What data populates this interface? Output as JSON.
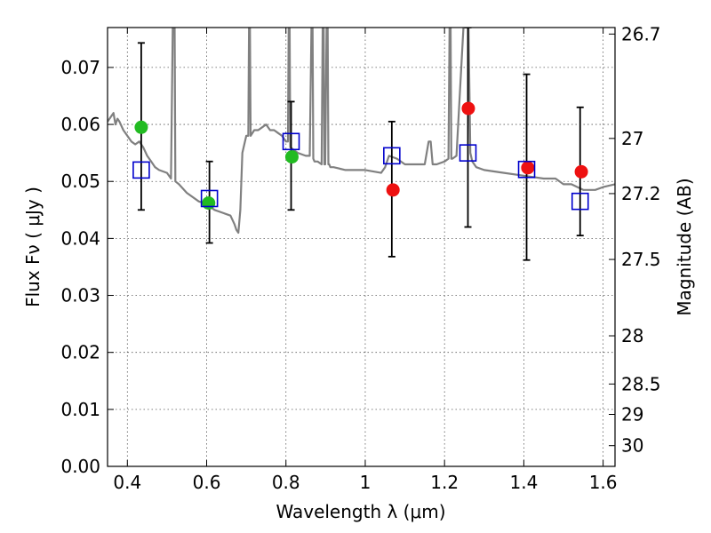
{
  "chart_data": {
    "type": "scatter",
    "title": "",
    "xlabel": "Wavelength  λ (μm)",
    "ylabel": "Flux  Fν  ( μJy )",
    "y2label": "Magnitude (AB)",
    "xlim": [
      0.35,
      1.63
    ],
    "ylim": [
      0.0,
      0.077
    ],
    "grid": true,
    "x_ticks": [
      0.4,
      0.6,
      0.8,
      1.0,
      1.2,
      1.4,
      1.6
    ],
    "x_tick_labels": [
      "0.4",
      "0.6",
      "0.8",
      "1",
      "1.2",
      "1.4",
      "1.6"
    ],
    "y_ticks": [
      0.0,
      0.01,
      0.02,
      0.03,
      0.04,
      0.05,
      0.06,
      0.07
    ],
    "y_tick_labels": [
      "0.00",
      "0.01",
      "0.02",
      "0.03",
      "0.04",
      "0.05",
      "0.06",
      "0.07"
    ],
    "y2_ticks": [
      26.7,
      27,
      27.2,
      27.5,
      28,
      28.5,
      29,
      30
    ],
    "y2_tick_labels": [
      "26.7",
      "27",
      "27.2",
      "27.5",
      "28",
      "28.5",
      "29",
      "30"
    ],
    "model_spectrum": {
      "color": "#808080",
      "x": [
        0.35,
        0.36,
        0.365,
        0.37,
        0.375,
        0.38,
        0.39,
        0.4,
        0.41,
        0.42,
        0.43,
        0.44,
        0.45,
        0.46,
        0.47,
        0.48,
        0.5,
        0.51,
        0.515,
        0.517,
        0.519,
        0.521,
        0.53,
        0.55,
        0.58,
        0.6,
        0.62,
        0.64,
        0.66,
        0.67,
        0.675,
        0.68,
        0.685,
        0.69,
        0.7,
        0.705,
        0.707,
        0.709,
        0.711,
        0.72,
        0.73,
        0.74,
        0.75,
        0.76,
        0.77,
        0.78,
        0.79,
        0.8,
        0.805,
        0.807,
        0.809,
        0.811,
        0.82,
        0.83,
        0.85,
        0.86,
        0.865,
        0.867,
        0.869,
        0.872,
        0.88,
        0.89,
        0.893,
        0.895,
        0.897,
        0.899,
        0.903,
        0.905,
        0.907,
        0.909,
        0.912,
        0.92,
        0.95,
        1.0,
        1.04,
        1.05,
        1.06,
        1.08,
        1.1,
        1.15,
        1.16,
        1.165,
        1.17,
        1.18,
        1.2,
        1.21,
        1.213,
        1.215,
        1.217,
        1.22,
        1.23,
        1.25,
        1.26,
        1.265,
        1.27,
        1.28,
        1.3,
        1.35,
        1.4,
        1.45,
        1.48,
        1.5,
        1.52,
        1.55,
        1.58,
        1.6,
        1.63
      ],
      "y": [
        0.0605,
        0.0615,
        0.062,
        0.06,
        0.061,
        0.0605,
        0.059,
        0.058,
        0.057,
        0.0565,
        0.057,
        0.056,
        0.0545,
        0.0535,
        0.0525,
        0.052,
        0.0515,
        0.0505,
        0.08,
        0.08,
        0.08,
        0.05,
        0.0495,
        0.048,
        0.0465,
        0.046,
        0.045,
        0.0445,
        0.044,
        0.0425,
        0.0415,
        0.041,
        0.045,
        0.055,
        0.058,
        0.058,
        0.08,
        0.08,
        0.058,
        0.059,
        0.059,
        0.0595,
        0.06,
        0.059,
        0.059,
        0.0585,
        0.058,
        0.057,
        0.057,
        0.08,
        0.08,
        0.056,
        0.0555,
        0.055,
        0.0545,
        0.0545,
        0.08,
        0.08,
        0.054,
        0.0535,
        0.0535,
        0.053,
        0.08,
        0.08,
        0.053,
        0.053,
        0.08,
        0.08,
        0.053,
        0.053,
        0.0525,
        0.0525,
        0.052,
        0.052,
        0.0515,
        0.0525,
        0.0545,
        0.054,
        0.053,
        0.053,
        0.057,
        0.057,
        0.053,
        0.053,
        0.0535,
        0.054,
        0.08,
        0.08,
        0.054,
        0.054,
        0.0545,
        0.08,
        0.08,
        0.055,
        0.0535,
        0.0525,
        0.052,
        0.0515,
        0.051,
        0.0505,
        0.0505,
        0.0495,
        0.0495,
        0.0485,
        0.0485,
        0.049,
        0.0495
      ]
    },
    "series": [
      {
        "marker": "circle",
        "color": "#22bb22",
        "x": [
          0.435,
          0.605,
          0.815
        ],
        "y": [
          0.0595,
          0.0462,
          0.0543
        ]
      },
      {
        "marker": "circle",
        "color": "#ee1111",
        "x": [
          1.07,
          1.26,
          1.41,
          1.545
        ],
        "y": [
          0.0485,
          0.0628,
          0.0524,
          0.0517
        ]
      },
      {
        "marker": "open-square",
        "color": "#0000cc",
        "x": [
          0.435,
          0.607,
          0.813,
          1.067,
          1.259,
          1.407,
          1.542
        ],
        "y": [
          0.052,
          0.047,
          0.057,
          0.0545,
          0.055,
          0.0521,
          0.0465
        ],
        "err_low": [
          0.045,
          0.0392,
          0.045,
          0.0368,
          0.042,
          0.0362,
          0.0405
        ],
        "err_high": [
          0.0743,
          0.0535,
          0.064,
          0.0605,
          0.077,
          0.0688,
          0.063
        ]
      }
    ]
  }
}
